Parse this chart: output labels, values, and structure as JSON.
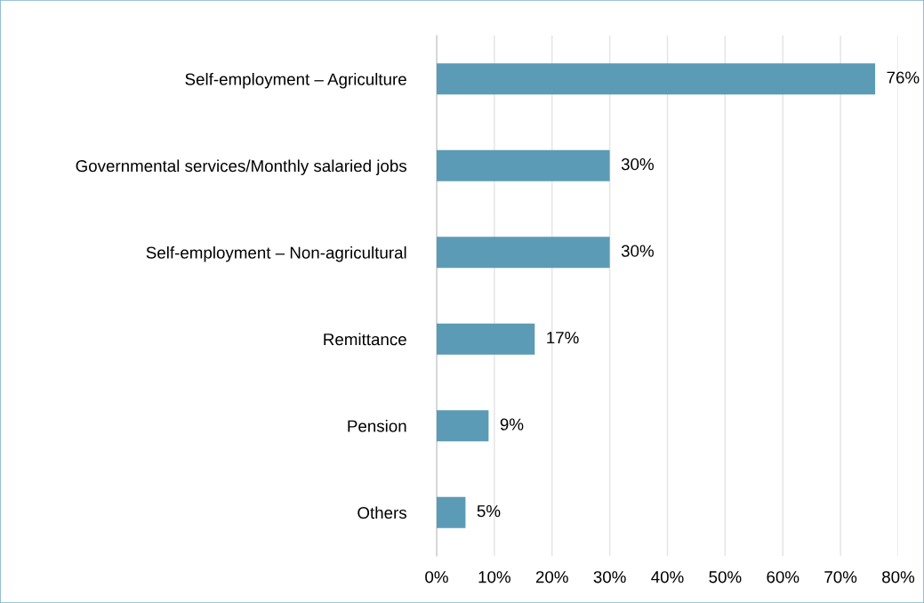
{
  "chart_data": {
    "type": "bar",
    "orientation": "horizontal",
    "categories": [
      "Self-employment – Agriculture",
      "Governmental services/Monthly salaried jobs",
      "Self-employment – Non-agricultural",
      "Remittance",
      "Pension",
      "Others"
    ],
    "values": [
      76,
      30,
      30,
      17,
      9,
      5
    ],
    "value_labels": [
      "76%",
      "30%",
      "30%",
      "17%",
      "9%",
      "5%"
    ],
    "color": "#5b9bb5",
    "xlim": [
      0,
      80
    ],
    "xticks": [
      {
        "value": 0,
        "label": "0%"
      },
      {
        "value": 10,
        "label": "10%"
      },
      {
        "value": 20,
        "label": "20%"
      },
      {
        "value": 30,
        "label": "30%"
      },
      {
        "value": 40,
        "label": "40%"
      },
      {
        "value": 50,
        "label": "50%"
      },
      {
        "value": 60,
        "label": "60%"
      },
      {
        "value": 70,
        "label": "70%"
      },
      {
        "value": 80,
        "label": "80%"
      }
    ],
    "grid": "x",
    "legend": false
  }
}
